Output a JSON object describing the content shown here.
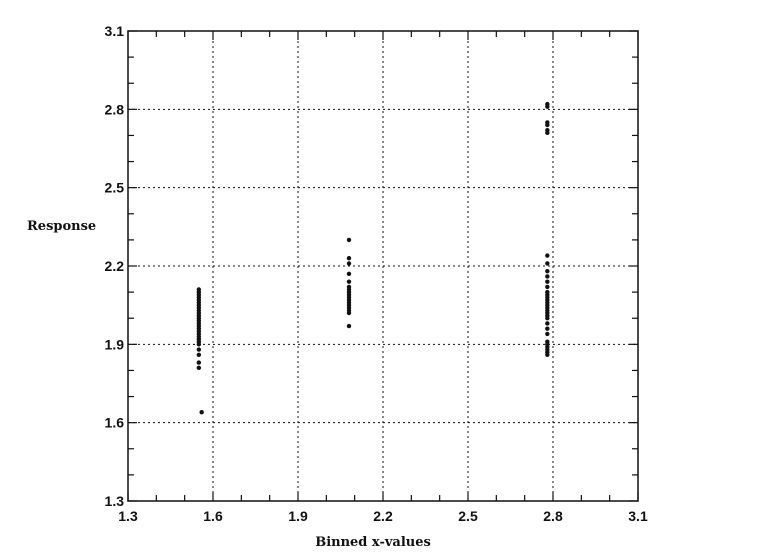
{
  "chart_data": {
    "type": "scatter",
    "title": "",
    "xlabel": "Binned x-values",
    "ylabel": "Response",
    "xlim": [
      1.3,
      3.1
    ],
    "ylim": [
      1.3,
      3.1
    ],
    "xticks": [
      "1.3",
      "1.6",
      "1.9",
      "2.2",
      "2.5",
      "2.8",
      "3.1"
    ],
    "yticks": [
      "1.3",
      "1.6",
      "1.9",
      "2.2",
      "2.5",
      "2.8",
      "3.1"
    ],
    "grid": true,
    "marker_color": "#111111",
    "series": [
      {
        "points": [
          [
            1.55,
            2.11
          ],
          [
            1.55,
            2.1
          ],
          [
            1.55,
            2.09
          ],
          [
            1.55,
            2.08
          ],
          [
            1.55,
            2.07
          ],
          [
            1.55,
            2.06
          ],
          [
            1.55,
            2.05
          ],
          [
            1.55,
            2.04
          ],
          [
            1.55,
            2.03
          ],
          [
            1.55,
            2.02
          ],
          [
            1.55,
            2.01
          ],
          [
            1.55,
            2.0
          ],
          [
            1.55,
            1.99
          ],
          [
            1.55,
            1.98
          ],
          [
            1.55,
            1.97
          ],
          [
            1.55,
            1.96
          ],
          [
            1.55,
            1.95
          ],
          [
            1.55,
            1.94
          ],
          [
            1.55,
            1.93
          ],
          [
            1.55,
            1.92
          ],
          [
            1.55,
            1.91
          ],
          [
            1.55,
            1.9
          ],
          [
            1.55,
            1.88
          ],
          [
            1.55,
            1.86
          ],
          [
            1.55,
            1.83
          ],
          [
            1.55,
            1.81
          ],
          [
            1.56,
            1.64
          ],
          [
            2.08,
            2.3
          ],
          [
            2.08,
            2.23
          ],
          [
            2.08,
            2.21
          ],
          [
            2.08,
            2.17
          ],
          [
            2.08,
            2.14
          ],
          [
            2.08,
            2.12
          ],
          [
            2.08,
            2.11
          ],
          [
            2.08,
            2.1
          ],
          [
            2.08,
            2.09
          ],
          [
            2.08,
            2.08
          ],
          [
            2.08,
            2.07
          ],
          [
            2.08,
            2.06
          ],
          [
            2.08,
            2.05
          ],
          [
            2.08,
            2.04
          ],
          [
            2.08,
            2.03
          ],
          [
            2.08,
            2.02
          ],
          [
            2.08,
            1.97
          ],
          [
            2.78,
            2.82
          ],
          [
            2.78,
            2.81
          ],
          [
            2.78,
            2.75
          ],
          [
            2.78,
            2.74
          ],
          [
            2.78,
            2.72
          ],
          [
            2.78,
            2.71
          ],
          [
            2.78,
            2.24
          ],
          [
            2.78,
            2.21
          ],
          [
            2.78,
            2.18
          ],
          [
            2.78,
            2.16
          ],
          [
            2.78,
            2.14
          ],
          [
            2.78,
            2.12
          ],
          [
            2.78,
            2.1
          ],
          [
            2.78,
            2.09
          ],
          [
            2.78,
            2.08
          ],
          [
            2.78,
            2.07
          ],
          [
            2.78,
            2.06
          ],
          [
            2.78,
            2.05
          ],
          [
            2.78,
            2.04
          ],
          [
            2.78,
            2.03
          ],
          [
            2.78,
            2.02
          ],
          [
            2.78,
            2.01
          ],
          [
            2.78,
            2.0
          ],
          [
            2.78,
            1.98
          ],
          [
            2.78,
            1.96
          ],
          [
            2.78,
            1.94
          ],
          [
            2.78,
            1.91
          ],
          [
            2.78,
            1.9
          ],
          [
            2.78,
            1.89
          ],
          [
            2.78,
            1.88
          ],
          [
            2.78,
            1.87
          ],
          [
            2.78,
            1.86
          ]
        ]
      }
    ]
  }
}
